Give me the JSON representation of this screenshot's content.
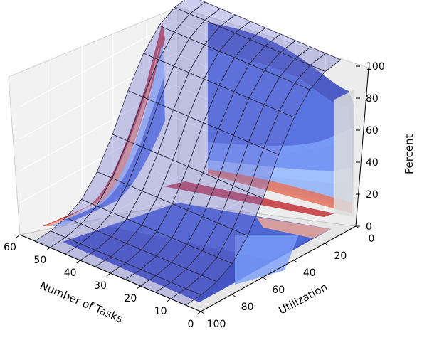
{
  "chart_data": {
    "type": "surface3d",
    "xlabel": "Number of Tasks",
    "ylabel": "Utilization",
    "zlabel": "Percent",
    "x_ticks": [
      "60",
      "50",
      "40",
      "30",
      "20",
      "10",
      "0"
    ],
    "y_ticks": [
      "0",
      "20",
      "40",
      "60",
      "80",
      "100"
    ],
    "z_ticks": [
      "0",
      "20",
      "40",
      "60",
      "80",
      "100"
    ],
    "xlim": [
      0,
      60
    ],
    "ylim": [
      0,
      100
    ],
    "zlim": [
      0,
      100
    ],
    "grid": true,
    "surface": {
      "tasks": [
        5,
        10,
        15,
        20,
        25,
        30,
        35,
        40,
        45,
        50,
        55
      ],
      "utilization": [
        0,
        10,
        20,
        30,
        40,
        50,
        60,
        70,
        80,
        90,
        100
      ],
      "percent_by_utilization": [
        100,
        98,
        92,
        80,
        62,
        40,
        22,
        10,
        4,
        1,
        0
      ]
    },
    "contour_colormap": [
      "#3b4cc0",
      "#5977e3",
      "#7b9ff9",
      "#a5c3fe",
      "#cdd9ec",
      "#edd1c2",
      "#f7ad90",
      "#e7745b",
      "#c0282f",
      "#b40426"
    ]
  }
}
